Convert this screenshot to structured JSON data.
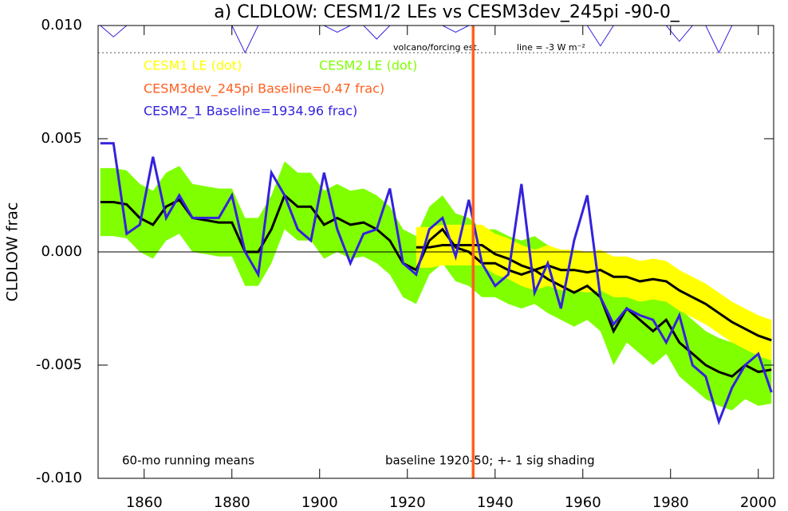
{
  "chart_data": {
    "type": "line",
    "title": "a) CLDLOW: CESM1/2 LEs vs CESM3dev_245pi -90-0_",
    "y_label": "CLDLOW frac",
    "annotations": [
      "60-mo running means",
      "baseline 1920-50; +- 1 sig shading"
    ],
    "xlim": [
      1849.5,
      2003.5
    ],
    "xticks": [
      1860,
      1880,
      1900,
      1920,
      1940,
      1960,
      1980,
      2000
    ],
    "ylim": [
      -0.01,
      0.01
    ],
    "yticks": [
      {
        "value": -0.01,
        "label": "-0.010"
      },
      {
        "value": -0.005,
        "label": "-0.005"
      },
      {
        "value": 0,
        "label": "0.000"
      },
      {
        "value": 0.005,
        "label": "0.005"
      },
      {
        "value": 0.01,
        "label": "0.010"
      }
    ],
    "hline": 0,
    "x": [
      1850,
      1853,
      1856,
      1859,
      1862,
      1865,
      1868,
      1871,
      1874,
      1877,
      1880,
      1883,
      1886,
      1889,
      1892,
      1895,
      1898,
      1901,
      1904,
      1907,
      1910,
      1913,
      1916,
      1919,
      1922,
      1925,
      1928,
      1931,
      1934,
      1937,
      1940,
      1943,
      1946,
      1949,
      1952,
      1955,
      1958,
      1961,
      1964,
      1967,
      1970,
      1973,
      1976,
      1979,
      1982,
      1985,
      1988,
      1991,
      1994,
      1997,
      2000,
      2003
    ],
    "series": [
      {
        "name": "CESM1 LE (dot)",
        "color": "#ffff00",
        "line_color": "#000000",
        "values": [
          null,
          null,
          null,
          null,
          null,
          null,
          null,
          null,
          null,
          null,
          null,
          null,
          null,
          null,
          null,
          null,
          null,
          null,
          null,
          null,
          null,
          null,
          null,
          null,
          0.0002,
          0.0002,
          0.0003,
          0.0003,
          0.0003,
          0.0003,
          -0.0001,
          -0.0003,
          -0.0006,
          -0.0008,
          -0.0006,
          -0.0008,
          -0.0008,
          -0.0009,
          -0.0008,
          -0.0011,
          -0.0011,
          -0.0013,
          -0.0012,
          -0.0013,
          -0.0017,
          -0.002,
          -0.0023,
          -0.0027,
          -0.0031,
          -0.0034,
          -0.0037,
          -0.0039
        ],
        "upper": [
          null,
          null,
          null,
          null,
          null,
          null,
          null,
          null,
          null,
          null,
          null,
          null,
          null,
          null,
          null,
          null,
          null,
          null,
          null,
          null,
          null,
          null,
          null,
          null,
          0.0011,
          0.0011,
          0.0012,
          0.0012,
          0.0012,
          0.0012,
          0.0008,
          0.0006,
          0.0003,
          0.0001,
          0.0003,
          0.0001,
          0.0001,
          0.0,
          0.0001,
          -0.0002,
          -0.0002,
          -0.0004,
          -0.0003,
          -0.0004,
          -0.0008,
          -0.0011,
          -0.0014,
          -0.0018,
          -0.0022,
          -0.0025,
          -0.0028,
          -0.003
        ],
        "lower": [
          null,
          null,
          null,
          null,
          null,
          null,
          null,
          null,
          null,
          null,
          null,
          null,
          null,
          null,
          null,
          null,
          null,
          null,
          null,
          null,
          null,
          null,
          null,
          null,
          -0.0007,
          -0.0007,
          -0.0006,
          -0.0006,
          -0.0006,
          -0.0006,
          -0.001,
          -0.0012,
          -0.0015,
          -0.0017,
          -0.0015,
          -0.0017,
          -0.0017,
          -0.0018,
          -0.0017,
          -0.002,
          -0.002,
          -0.0022,
          -0.0021,
          -0.0022,
          -0.0026,
          -0.0029,
          -0.0032,
          -0.0036,
          -0.004,
          -0.0043,
          -0.0046,
          -0.0048
        ]
      },
      {
        "name": "CESM2 LE (dot)",
        "color": "#80ff00",
        "line_color": "#000000",
        "values": [
          0.0022,
          0.0022,
          0.0021,
          0.0015,
          0.0012,
          0.002,
          0.0023,
          0.0015,
          0.0014,
          0.0013,
          0.0013,
          0.0,
          0.0,
          0.001,
          0.0025,
          0.002,
          0.002,
          0.0012,
          0.0015,
          0.0012,
          0.0013,
          0.001,
          0.0005,
          -0.0005,
          -0.0008,
          0.0005,
          0.001,
          0.0002,
          0.0,
          -0.0005,
          -0.0005,
          -0.0008,
          -0.001,
          -0.0008,
          -0.0012,
          -0.0015,
          -0.0018,
          -0.0015,
          -0.002,
          -0.0035,
          -0.0025,
          -0.003,
          -0.0035,
          -0.003,
          -0.004,
          -0.0045,
          -0.005,
          -0.0053,
          -0.0055,
          -0.005,
          -0.0053,
          -0.0052
        ],
        "upper": [
          0.0037,
          0.0037,
          0.0036,
          0.003,
          0.0027,
          0.0035,
          0.0038,
          0.003,
          0.0029,
          0.0028,
          0.0028,
          0.0015,
          0.0015,
          0.0025,
          0.004,
          0.0035,
          0.0035,
          0.0027,
          0.003,
          0.0027,
          0.0028,
          0.0025,
          0.002,
          0.001,
          0.0007,
          0.002,
          0.0025,
          0.0017,
          0.0015,
          0.001,
          0.001,
          0.0007,
          0.0005,
          0.0007,
          0.0003,
          0.0,
          -0.0003,
          0.0,
          -0.0005,
          -0.002,
          -0.001,
          -0.0015,
          -0.002,
          -0.0015,
          -0.0025,
          -0.003,
          -0.0035,
          -0.0038,
          -0.004,
          -0.0035,
          -0.0038,
          -0.0037
        ],
        "lower": [
          0.0007,
          0.0007,
          0.0006,
          0.0,
          -0.0003,
          0.0005,
          0.0008,
          0.0,
          -0.0001,
          -0.0002,
          -0.0002,
          -0.0015,
          -0.0015,
          -0.0005,
          0.001,
          0.0005,
          0.0005,
          -0.0003,
          0.0,
          -0.0003,
          -0.0002,
          -0.0005,
          -0.001,
          -0.002,
          -0.0023,
          -0.001,
          -0.0005,
          -0.0013,
          -0.0015,
          -0.002,
          -0.002,
          -0.0023,
          -0.0025,
          -0.0023,
          -0.0027,
          -0.003,
          -0.0033,
          -0.003,
          -0.0035,
          -0.005,
          -0.004,
          -0.0045,
          -0.005,
          -0.0045,
          -0.0055,
          -0.006,
          -0.0065,
          -0.0068,
          -0.007,
          -0.0065,
          -0.0068,
          -0.0067
        ]
      },
      {
        "name": "CESM3dev_245pi Baseline=0.47 frac)",
        "color": "#ff6020",
        "x_line": 1935
      },
      {
        "name": "CESM2_1 Baseline=1934.96 frac)",
        "color": "#3322dd",
        "values": [
          0.0048,
          0.0048,
          0.0008,
          0.0012,
          0.0042,
          0.0015,
          0.0025,
          0.0015,
          0.0015,
          0.0015,
          0.0025,
          0.0,
          -0.001,
          0.0035,
          0.0025,
          0.001,
          0.0005,
          0.0035,
          0.001,
          -0.0005,
          0.0008,
          0.001,
          0.0028,
          -0.0005,
          -0.001,
          0.001,
          0.0015,
          -0.0002,
          0.0023,
          -0.0005,
          -0.0015,
          -0.001,
          0.003,
          -0.0018,
          -0.0005,
          -0.0025,
          0.0005,
          0.0025,
          -0.002,
          -0.0032,
          -0.0025,
          -0.0028,
          -0.003,
          -0.004,
          -0.0028,
          -0.005,
          -0.0055,
          -0.0075,
          -0.006,
          -0.005,
          -0.0045,
          -0.0062
        ]
      }
    ],
    "forcing": {
      "label": "volcano/forcing est.",
      "color": "#3322dd",
      "values": [
        0.01,
        0.0095,
        0.01,
        0.01,
        0.01,
        0.01,
        0.01,
        0.01,
        0.01,
        0.01,
        0.01,
        0.0088,
        0.01,
        0.01,
        0.01,
        0.01,
        0.01,
        0.01,
        0.0097,
        0.01,
        0.01,
        0.0094,
        0.01,
        0.01,
        0.01,
        0.01,
        0.01,
        0.0097,
        0.01,
        0.01,
        0.01,
        0.01,
        0.01,
        0.01,
        0.01,
        0.01,
        0.01,
        0.01,
        0.0091,
        0.01,
        0.01,
        0.01,
        0.01,
        0.01,
        0.0093,
        0.01,
        0.01,
        0.0088,
        0.01,
        0.01,
        0.01,
        0.01
      ],
      "line_value": 0.0088,
      "line_label": "line = -3 W m⁻²"
    }
  }
}
